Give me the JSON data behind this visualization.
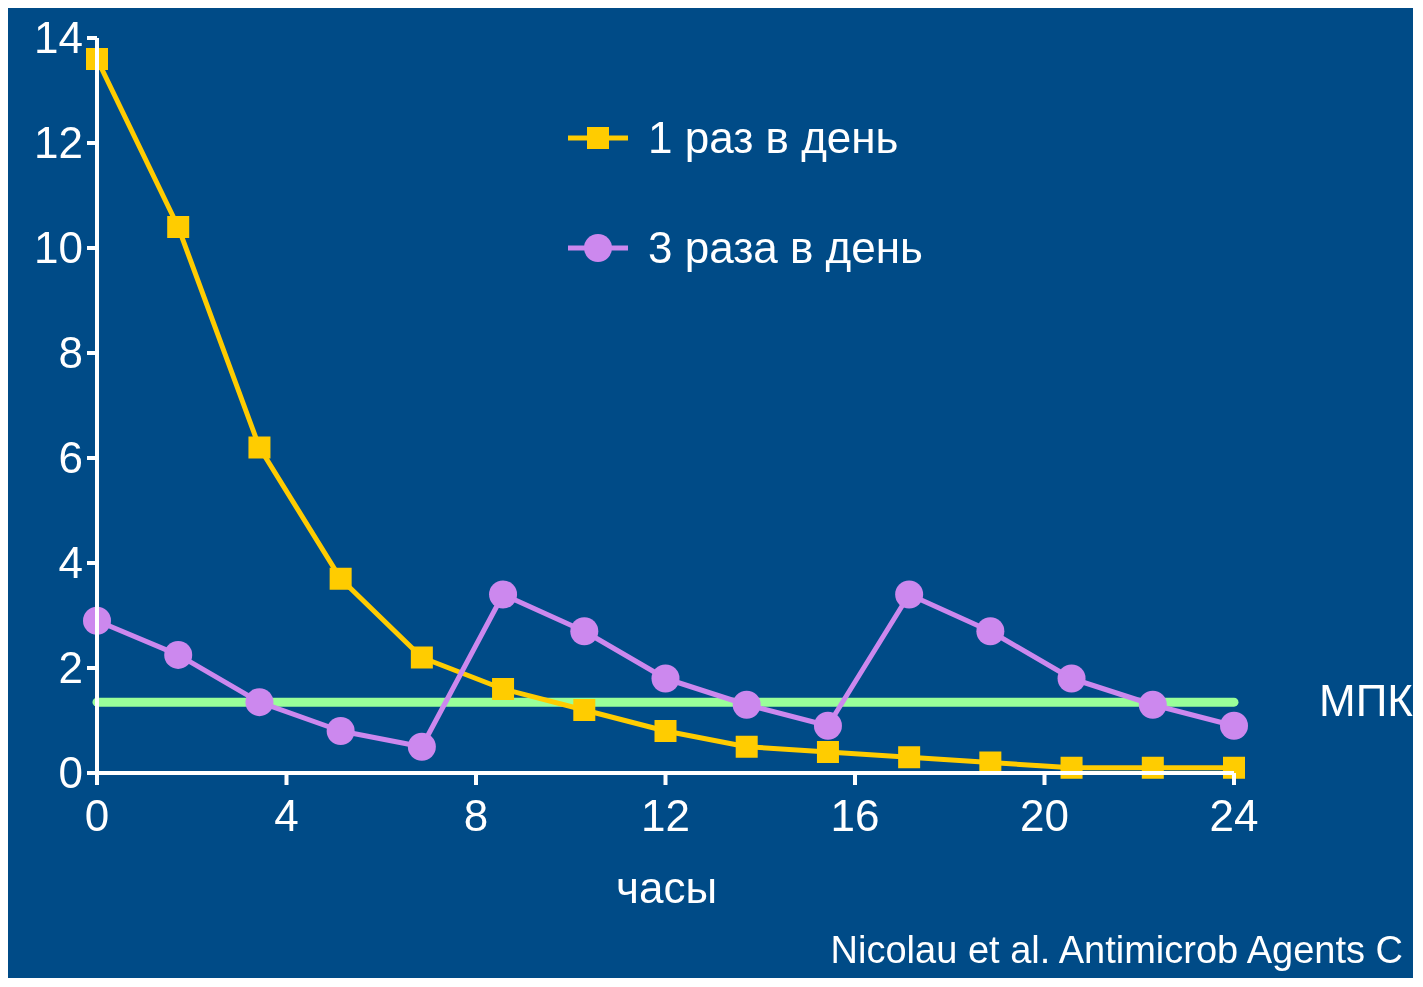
{
  "chart_data": {
    "type": "line",
    "xlabel": "часы",
    "xlim": [
      0,
      24
    ],
    "xticks": [
      0,
      4,
      8,
      12,
      16,
      20,
      24
    ],
    "ylim": [
      0,
      14
    ],
    "yticks": [
      0,
      2,
      4,
      6,
      8,
      10,
      12,
      14
    ],
    "legend": "top",
    "line_style": "solid",
    "series": [
      {
        "name": "1 раз в день",
        "color": "#ffcc00",
        "marker": "square",
        "x": [
          0,
          1.714,
          3.429,
          5.143,
          6.857,
          8.571,
          10.286,
          12,
          13.714,
          15.429,
          17.143,
          18.857,
          20.571,
          22.286,
          24
        ],
        "values": [
          13.6,
          10.4,
          6.2,
          3.7,
          2.2,
          1.6,
          1.2,
          0.8,
          0.5,
          0.4,
          0.3,
          0.2,
          0.1,
          0.1,
          0.1
        ]
      },
      {
        "name": "3 раза в день",
        "color": "#cc88ee",
        "marker": "circle",
        "x": [
          0,
          1.714,
          3.429,
          5.143,
          6.857,
          8.571,
          10.286,
          12,
          13.714,
          15.429,
          17.143,
          18.857,
          20.571,
          22.286,
          24
        ],
        "values": [
          2.9,
          2.25,
          1.35,
          0.8,
          0.5,
          3.4,
          2.7,
          1.8,
          1.3,
          0.9,
          3.4,
          2.7,
          1.8,
          1.3,
          0.9
        ]
      }
    ],
    "ref_lines": [
      {
        "axis": "y",
        "value": 1.35,
        "label": "МПК",
        "color": "#99ff99",
        "line_style": "solid"
      }
    ],
    "annotations": [
      "Nicolau et al. Antimicrob Agents C"
    ]
  }
}
